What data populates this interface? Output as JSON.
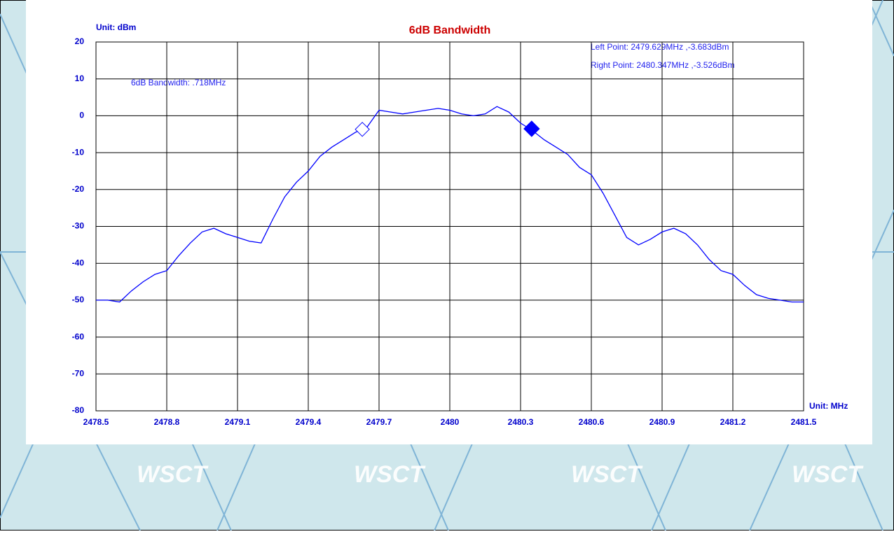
{
  "chart_data": {
    "type": "line",
    "title": "6dB Bandwidth",
    "y_unit": "Unit: dBm",
    "x_unit": "Unit: MHz",
    "annotations": [
      "6dB Bandwidth: .718MHz",
      "Left Point: 2479.629MHz ,-3.683dBm",
      "Right Point: 2480.347MHz ,-3.526dBm"
    ],
    "x": [
      2478.5,
      2478.55,
      2478.6,
      2478.65,
      2478.7,
      2478.75,
      2478.8,
      2478.85,
      2478.9,
      2478.95,
      2479,
      2479.05,
      2479.1,
      2479.15,
      2479.2,
      2479.25,
      2479.3,
      2479.35,
      2479.4,
      2479.45,
      2479.5,
      2479.55,
      2479.6,
      2479.65,
      2479.7,
      2479.75,
      2479.8,
      2479.85,
      2479.9,
      2479.95,
      2480,
      2480.05,
      2480.1,
      2480.15,
      2480.2,
      2480.25,
      2480.3,
      2480.35,
      2480.4,
      2480.45,
      2480.5,
      2480.55,
      2480.6,
      2480.65,
      2480.7,
      2480.75,
      2480.8,
      2480.85,
      2480.9,
      2480.95,
      2481,
      2481.05,
      2481.1,
      2481.15,
      2481.2,
      2481.25,
      2481.3,
      2481.35,
      2481.4,
      2481.45,
      2481.5
    ],
    "values": [
      -50,
      -50,
      -50.5,
      -47.5,
      -45,
      -43,
      -42,
      -38,
      -34.5,
      -31.5,
      -30.5,
      -32,
      -33,
      -34,
      -34.5,
      -28,
      -22,
      -18,
      -15,
      -11,
      -8.5,
      -6.5,
      -4.5,
      -3,
      1.5,
      1,
      0.5,
      1,
      1.5,
      2,
      1.5,
      0.5,
      0,
      0.5,
      2.5,
      1,
      -2,
      -4,
      -6.5,
      -8.5,
      -10.5,
      -14,
      -16,
      -21,
      -27,
      -33,
      -35,
      -33.5,
      -31.5,
      -30.5,
      -32,
      -35,
      -39,
      -42,
      -43,
      -46,
      -48.5,
      -49.5,
      -50,
      -50.5,
      -50.5
    ],
    "color": "#0000ff",
    "markers": [
      {
        "x": 2479.629,
        "y": -3.683,
        "filled": false
      },
      {
        "x": 2480.347,
        "y": -3.526,
        "filled": true
      }
    ],
    "xlim": [
      2478.5,
      2481.5
    ],
    "xticks": [
      2478.5,
      2478.8,
      2479.1,
      2479.4,
      2479.7,
      2480,
      2480.3,
      2480.6,
      2480.9,
      2481.2,
      2481.5
    ],
    "ylim": [
      -80,
      20
    ],
    "yticks": [
      20,
      10,
      0,
      -10,
      -20,
      -30,
      -40,
      -50,
      -60,
      -70,
      -80
    ],
    "grid": true
  },
  "watermark": "WSCT"
}
